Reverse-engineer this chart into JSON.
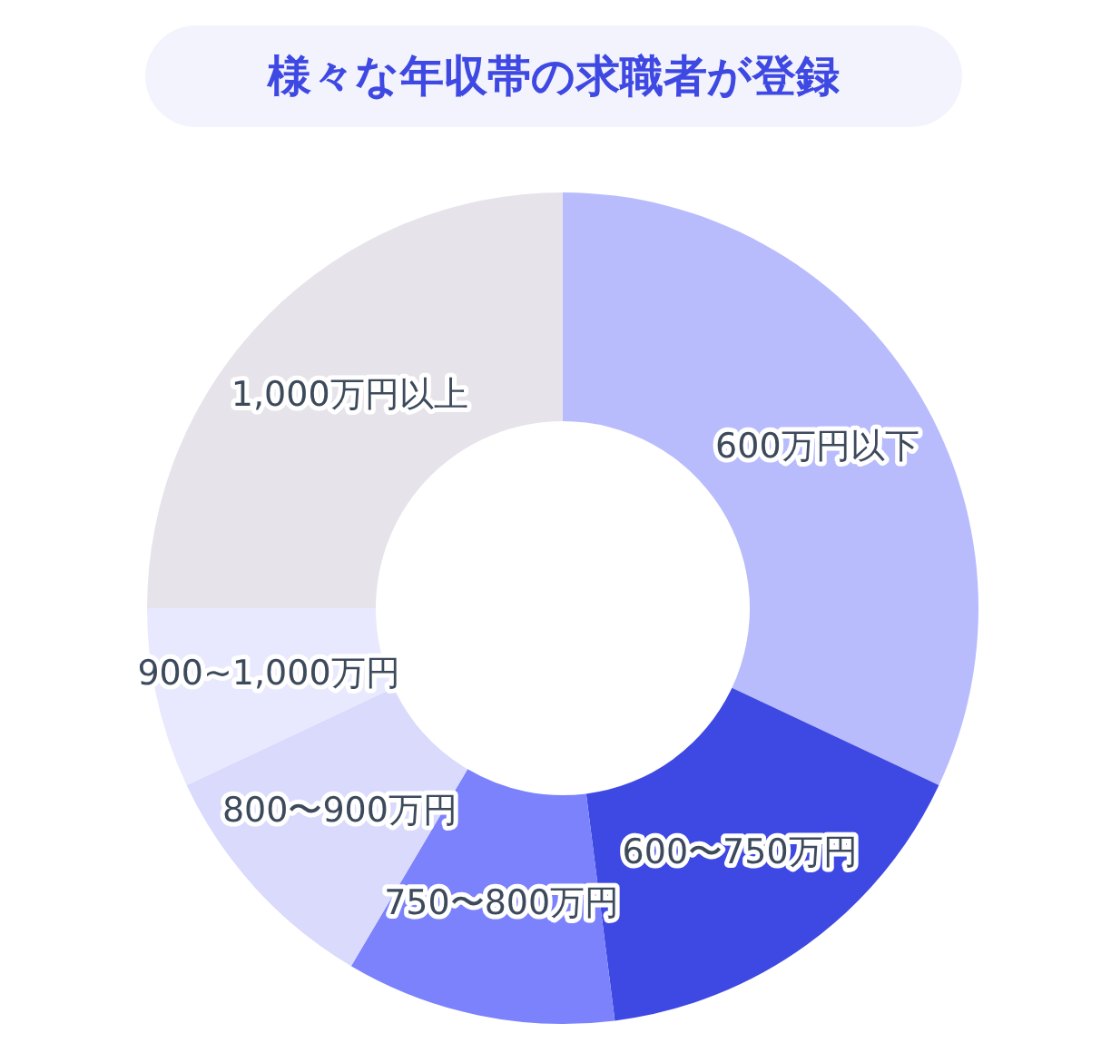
{
  "chart_data": {
    "type": "donut",
    "title": "様々な年収帯の求職者が登録",
    "categories": [
      "600万円以下",
      "600〜750万円",
      "750〜800万円",
      "800〜900万円",
      "900~1,000万円",
      "1,000万円以上"
    ],
    "values": [
      32,
      16,
      10.5,
      9.5,
      7,
      25
    ],
    "colors": [
      "#b8bcfd",
      "#3e48e3",
      "#7b82fb",
      "#d9dafc",
      "#e8e9fe",
      "#e6e4ea"
    ]
  }
}
